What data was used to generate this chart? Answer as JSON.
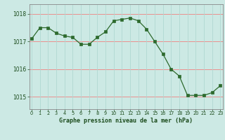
{
  "x": [
    0,
    1,
    2,
    3,
    4,
    5,
    6,
    7,
    8,
    9,
    10,
    11,
    12,
    13,
    14,
    15,
    16,
    17,
    18,
    19,
    20,
    21,
    22,
    23
  ],
  "y": [
    1017.1,
    1017.5,
    1017.5,
    1017.3,
    1017.2,
    1017.15,
    1016.9,
    1016.9,
    1017.15,
    1017.35,
    1017.75,
    1017.8,
    1017.85,
    1017.75,
    1017.45,
    1017.0,
    1016.55,
    1016.0,
    1015.75,
    1015.05,
    1015.05,
    1015.05,
    1015.15,
    1015.4
  ],
  "line_color": "#2d6a2d",
  "marker_color": "#2d6a2d",
  "bg_color": "#cce9e4",
  "grid_color_v": "#b0d8d2",
  "grid_color_h": "#f08080",
  "xlabel": "Graphe pression niveau de la mer (hPa)",
  "xlabel_color": "#1a4a1a",
  "tick_color": "#1a4a1a",
  "axis_color": "#888888",
  "ylim_min": 1014.55,
  "ylim_max": 1018.35,
  "yticks": [
    1015,
    1016,
    1017,
    1018
  ],
  "figsize": [
    3.2,
    2.0
  ],
  "dpi": 100
}
